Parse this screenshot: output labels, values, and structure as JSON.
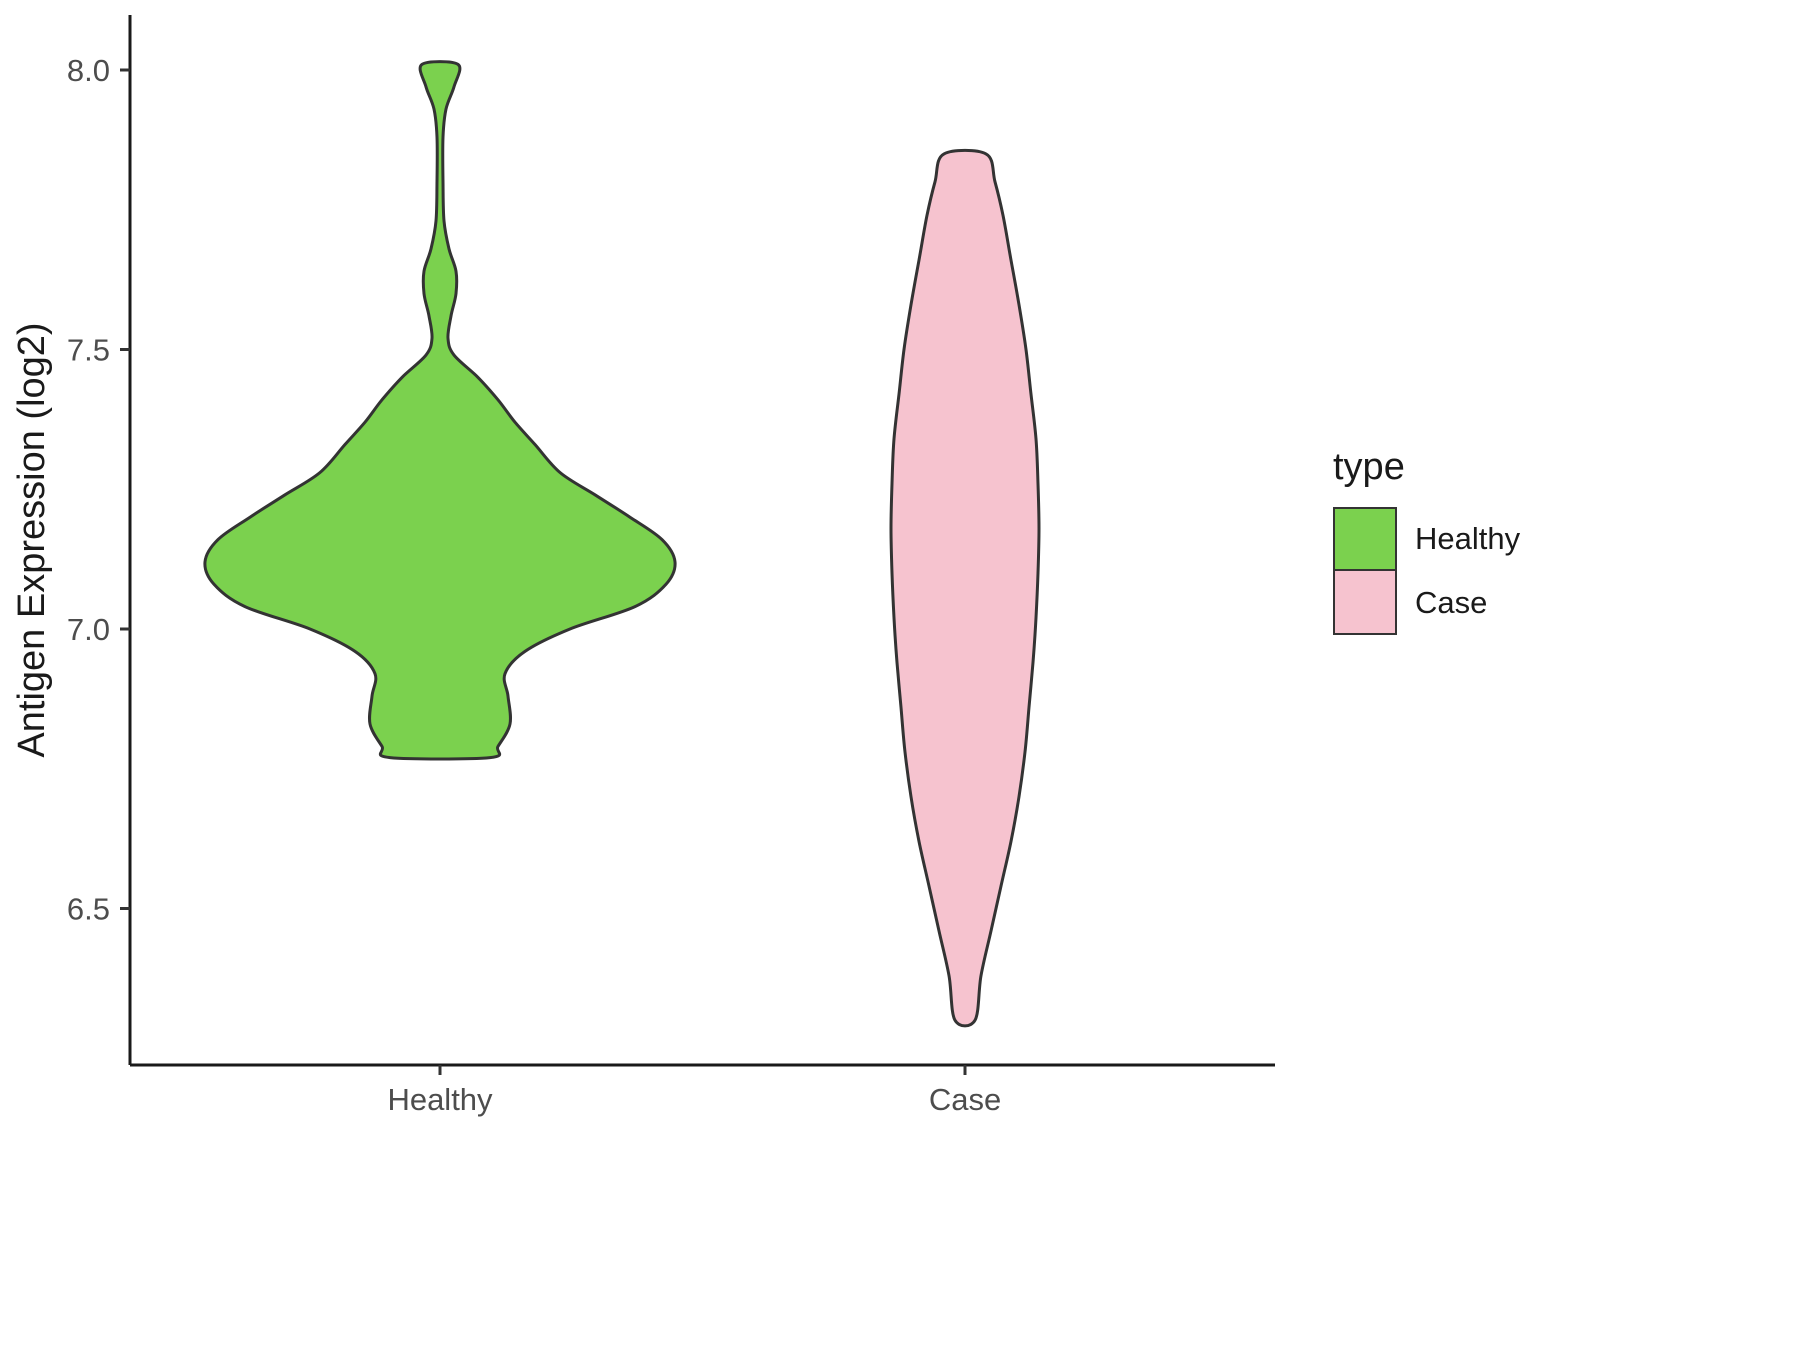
{
  "chart_data": {
    "type": "violin",
    "title": "",
    "xlabel": "",
    "ylabel": "Antigen Expression (log2)",
    "categories": [
      "Healthy",
      "Case"
    ],
    "y_ticks": [
      "6.5",
      "7.0",
      "7.5",
      "8.0"
    ],
    "y_tick_values": [
      6.5,
      7.0,
      7.5,
      8.0
    ],
    "ylim": [
      6.2,
      8.1
    ],
    "grid": "off",
    "legend": {
      "title": "type",
      "position": "right",
      "entries": [
        {
          "label": "Healthy",
          "color": "#7BD14E"
        },
        {
          "label": "Case",
          "color": "#F6C3CF"
        }
      ]
    },
    "series": [
      {
        "name": "Healthy",
        "category": "Healthy",
        "fill": "#7BD14E",
        "stroke": "#333333",
        "range": [
          6.77,
          8.01
        ],
        "profile_note": "pairs of [y_value, half_width_px] describing kernel density outline",
        "profile": [
          [
            8.01,
            18
          ],
          [
            7.97,
            14
          ],
          [
            7.93,
            6
          ],
          [
            7.88,
            3
          ],
          [
            7.8,
            3
          ],
          [
            7.73,
            4
          ],
          [
            7.68,
            9
          ],
          [
            7.64,
            16
          ],
          [
            7.6,
            16
          ],
          [
            7.56,
            11
          ],
          [
            7.52,
            8
          ],
          [
            7.49,
            14
          ],
          [
            7.45,
            38
          ],
          [
            7.41,
            58
          ],
          [
            7.37,
            75
          ],
          [
            7.33,
            95
          ],
          [
            7.28,
            120
          ],
          [
            7.24,
            155
          ],
          [
            7.2,
            190
          ],
          [
            7.16,
            222
          ],
          [
            7.12,
            235
          ],
          [
            7.08,
            226
          ],
          [
            7.04,
            195
          ],
          [
            7.0,
            130
          ],
          [
            6.96,
            85
          ],
          [
            6.92,
            65
          ],
          [
            6.88,
            68
          ],
          [
            6.83,
            70
          ],
          [
            6.79,
            58
          ],
          [
            6.77,
            50
          ]
        ]
      },
      {
        "name": "Case",
        "category": "Case",
        "fill": "#F6C3CF",
        "stroke": "#333333",
        "range": [
          6.3,
          7.85
        ],
        "profile_note": "pairs of [y_value, half_width_px] describing kernel density outline",
        "profile": [
          [
            7.85,
            21
          ],
          [
            7.8,
            30
          ],
          [
            7.74,
            38
          ],
          [
            7.66,
            46
          ],
          [
            7.58,
            54
          ],
          [
            7.5,
            61
          ],
          [
            7.42,
            66
          ],
          [
            7.34,
            71
          ],
          [
            7.26,
            73
          ],
          [
            7.18,
            74
          ],
          [
            7.1,
            73
          ],
          [
            7.02,
            71
          ],
          [
            6.94,
            68
          ],
          [
            6.86,
            64
          ],
          [
            6.78,
            60
          ],
          [
            6.7,
            54
          ],
          [
            6.62,
            46
          ],
          [
            6.54,
            36
          ],
          [
            6.46,
            26
          ],
          [
            6.38,
            16
          ],
          [
            6.3,
            10
          ]
        ]
      }
    ],
    "axis_color": "#1a1a1a",
    "tick_label_color": "#4d4d4d"
  }
}
